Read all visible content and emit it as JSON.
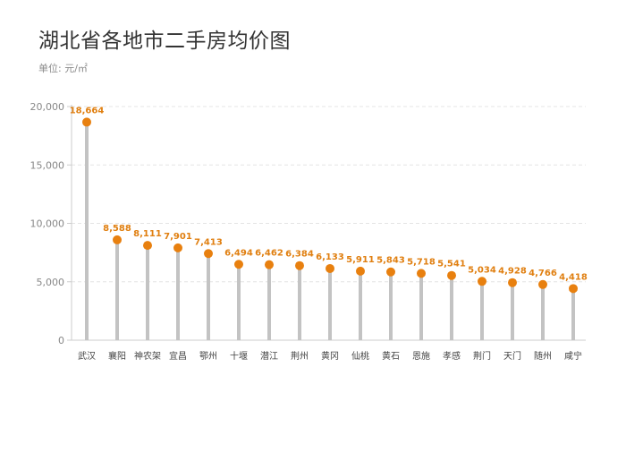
{
  "chart_data": {
    "type": "lollipop",
    "title": "湖北省各地市二手房均价图",
    "subtitle": "单位: 元/㎡",
    "xlabel": "",
    "ylabel": "",
    "ylim": [
      0,
      20000
    ],
    "yticks": [
      0,
      5000,
      10000,
      15000,
      20000
    ],
    "ytick_labels": [
      "0",
      "5,000",
      "10,000",
      "15,000",
      "20,000"
    ],
    "grid": true,
    "categories": [
      "武汉",
      "襄阳",
      "神农架",
      "宜昌",
      "鄂州",
      "十堰",
      "潜江",
      "荆州",
      "黄冈",
      "仙桃",
      "黄石",
      "恩施",
      "孝感",
      "荆门",
      "天门",
      "随州",
      "咸宁"
    ],
    "values": [
      18664,
      8588,
      8111,
      7901,
      7413,
      6494,
      6462,
      6384,
      6133,
      5911,
      5843,
      5718,
      5541,
      5034,
      4928,
      4766,
      4418
    ],
    "data_labels": [
      "18,664",
      "8,588",
      "8,111",
      "7,901",
      "7,413",
      "6,494",
      "6,462",
      "6,384",
      "6,133",
      "5,911",
      "5,843",
      "5,718",
      "5,541",
      "5,034",
      "4,928",
      "4,766",
      "4,418"
    ],
    "colors": {
      "stem": "#c3c3c3",
      "dot": "#e8800f",
      "label": "#e07f10",
      "grid": "#e4e4e4",
      "axis": "#cccccc"
    }
  }
}
